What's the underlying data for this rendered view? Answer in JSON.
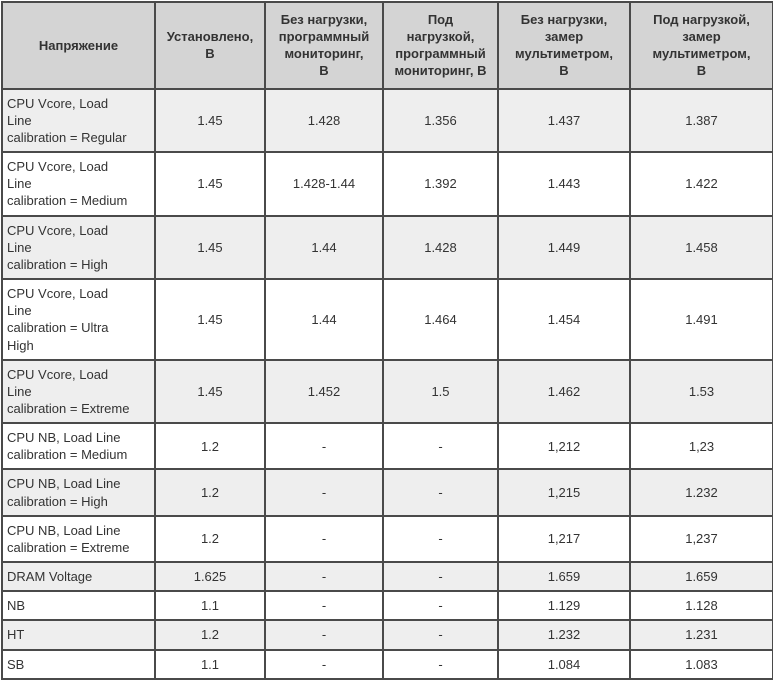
{
  "table": {
    "columns": [
      "Напряжение",
      "Установлено,\nВ",
      "Без нагрузки,\nпрограммный\nмониторинг,\nВ",
      "Под\nнагрузкой,\nпрограммный\nмониторинг, В",
      "Без нагрузки,\nзамер\nмультиметром,\nВ",
      "Под нагрузкой,\nзамер\nмультиметром,\nВ"
    ],
    "rows": [
      {
        "label": "CPU Vcore, Load\nLine\ncalibration = Regular",
        "values": [
          "1.45",
          "1.428",
          "1.356",
          "1.437",
          "1.387"
        ]
      },
      {
        "label": "CPU Vcore, Load\nLine\ncalibration = Medium",
        "values": [
          "1.45",
          "1.428-1.44",
          "1.392",
          "1.443",
          "1.422"
        ]
      },
      {
        "label": "CPU Vcore, Load\nLine\ncalibration = High",
        "values": [
          "1.45",
          "1.44",
          "1.428",
          "1.449",
          "1.458"
        ]
      },
      {
        "label": "CPU Vcore, Load\nLine\ncalibration = Ultra\nHigh",
        "values": [
          "1.45",
          "1.44",
          "1.464",
          "1.454",
          "1.491"
        ]
      },
      {
        "label": "CPU Vcore, Load\nLine\ncalibration = Extreme",
        "values": [
          "1.45",
          "1.452",
          "1.5",
          "1.462",
          "1.53"
        ]
      },
      {
        "label": "CPU NB, Load Line\ncalibration = Medium",
        "values": [
          "1.2",
          "-",
          "-",
          "1,212",
          "1,23"
        ]
      },
      {
        "label": "CPU NB, Load Line\ncalibration = High",
        "values": [
          "1.2",
          "-",
          "-",
          "1,215",
          "1.232"
        ]
      },
      {
        "label": "CPU NB, Load Line\ncalibration = Extreme",
        "values": [
          "1.2",
          "-",
          "-",
          "1,217",
          "1,237"
        ]
      },
      {
        "label": "DRAM Voltage",
        "values": [
          "1.625",
          "-",
          "-",
          "1.659",
          "1.659"
        ]
      },
      {
        "label": "NB",
        "values": [
          "1.1",
          "-",
          "-",
          "1.129",
          "1.128"
        ]
      },
      {
        "label": "HT",
        "values": [
          "1.2",
          "-",
          "-",
          "1.232",
          "1.231"
        ]
      },
      {
        "label": "SB",
        "values": [
          "1.1",
          "-",
          "-",
          "1.084",
          "1.083"
        ]
      }
    ]
  },
  "colors": {
    "header_bg": "#d4d4d4",
    "stripe_bg": "#eeeeee",
    "row_bg": "#ffffff",
    "border": "#4a4a4a",
    "text": "#333333"
  }
}
